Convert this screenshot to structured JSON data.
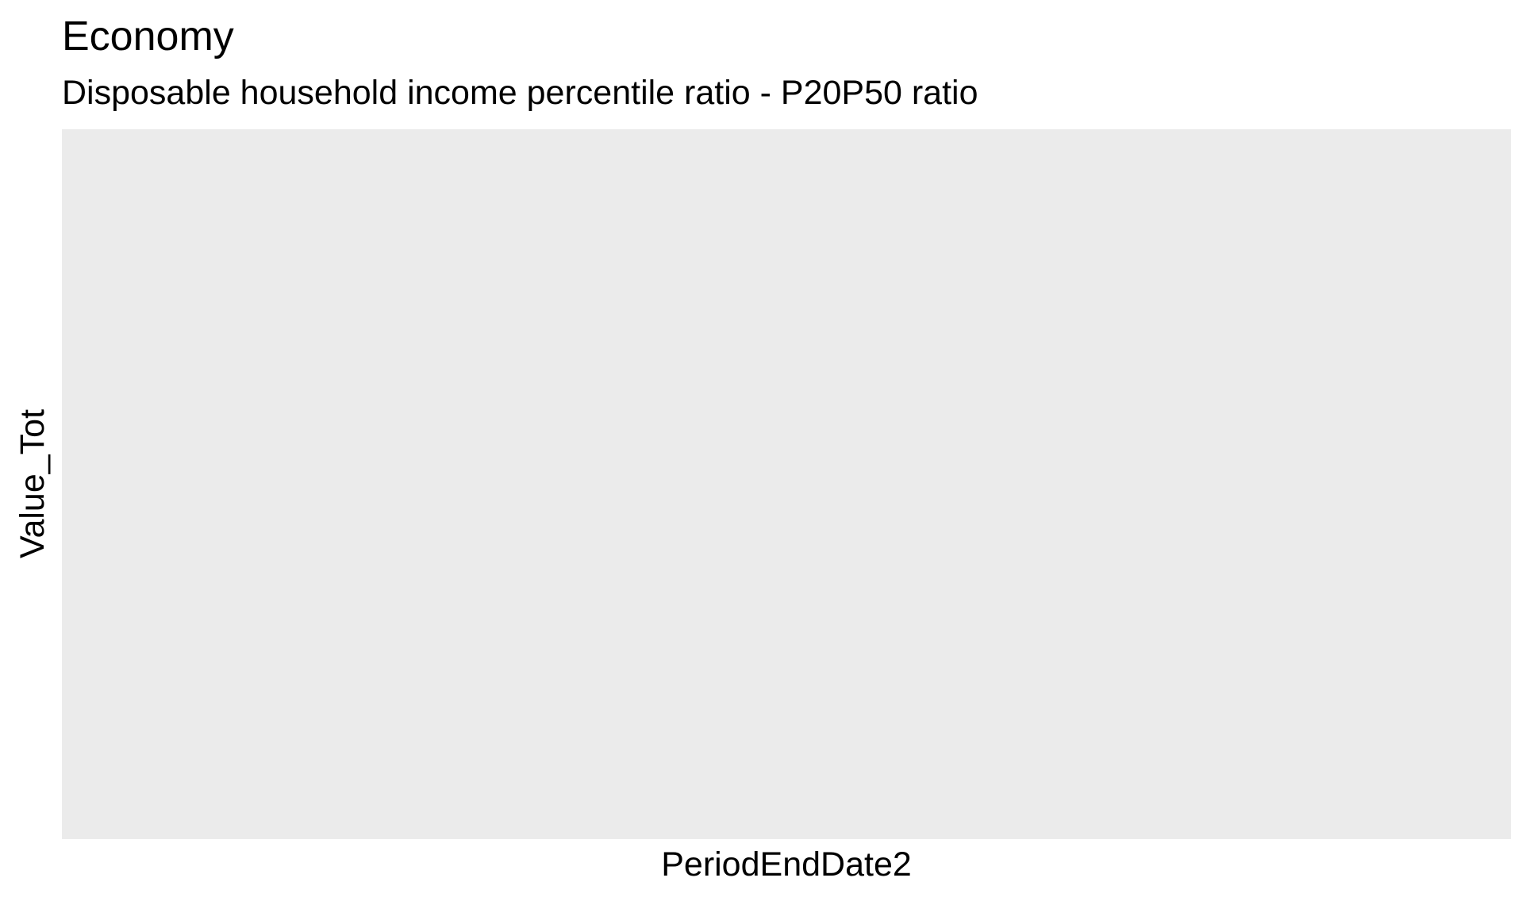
{
  "chart_data": {
    "type": "line",
    "title": "Economy",
    "subtitle": "Disposable household income percentile ratio - P20P50 ratio",
    "xlabel": "PeriodEndDate2",
    "ylabel": "Value_Tot",
    "x": [],
    "series": [],
    "grid": false,
    "legend": "none",
    "panel_color": "#ebebeb"
  }
}
